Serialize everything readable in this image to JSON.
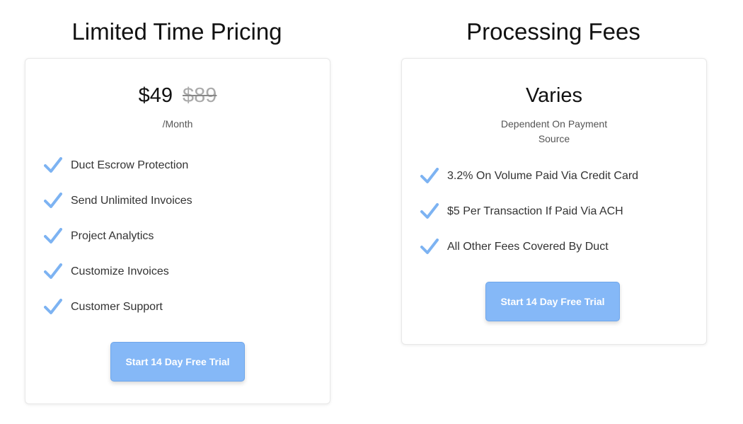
{
  "left": {
    "title": "Limited Time Pricing",
    "price": "$49",
    "old_price": "$89",
    "period": "/Month",
    "features": [
      "Duct Escrow Protection",
      "Send Unlimited Invoices",
      "Project Analytics",
      "Customize Invoices",
      "Customer Support"
    ],
    "button": "Start 14 Day Free Trial"
  },
  "right": {
    "title": "Processing Fees",
    "price": "Varies",
    "subtitle_line1": "Dependent On Payment",
    "subtitle_line2": "Source",
    "features": [
      "3.2% On Volume Paid Via Credit Card",
      "$5 Per Transaction If Paid Via ACH",
      "All Other Fees Covered By Duct"
    ],
    "button": "Start 14 Day Free Trial"
  },
  "colors": {
    "accent": "#85b8f7",
    "check": "#7db3f2"
  }
}
